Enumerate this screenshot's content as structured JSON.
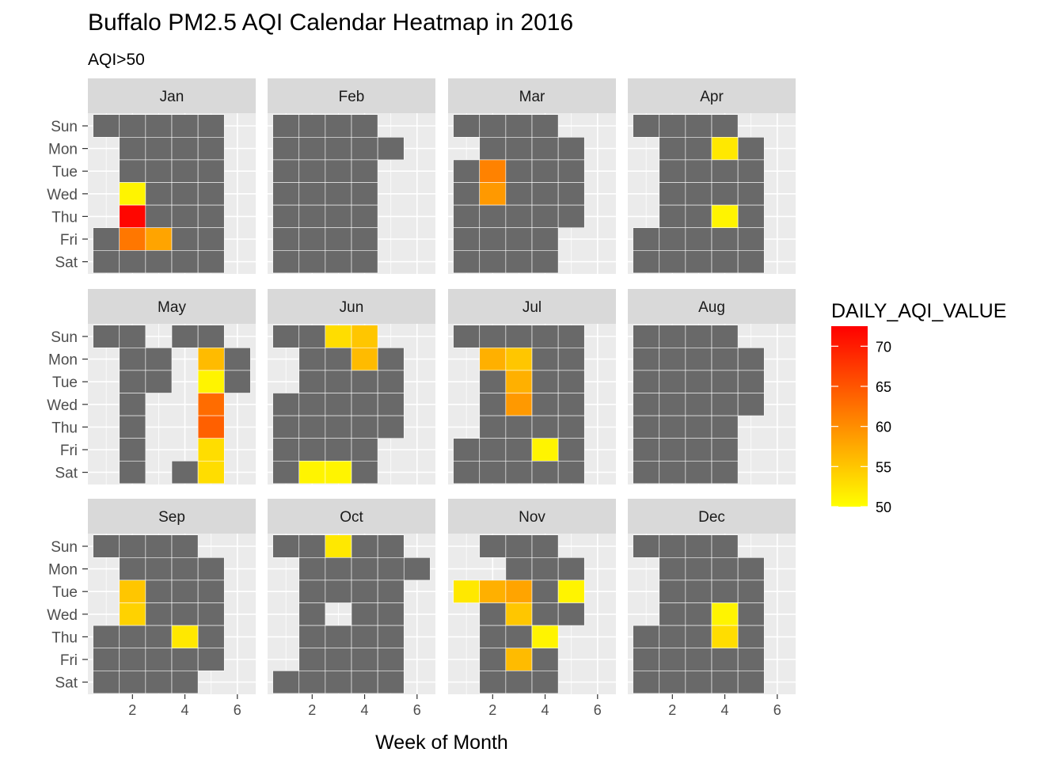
{
  "chart_data": {
    "type": "heatmap",
    "title": "Buffalo PM2.5 AQI Calendar Heatmap in 2016",
    "subtitle": "AQI>50",
    "xlabel": "Week of Month",
    "ylabel": "",
    "days": [
      "Sun",
      "Mon",
      "Tue",
      "Wed",
      "Thu",
      "Fri",
      "Sat"
    ],
    "x_ticks": [
      "2",
      "4",
      "6"
    ],
    "x_range": [
      0.3,
      6.7
    ],
    "legend": {
      "title": "DAILY_AQI_VALUE",
      "position": "right",
      "range": [
        50,
        72.5
      ],
      "ticks": [
        "50",
        "55",
        "60",
        "65",
        "70"
      ],
      "colors": [
        "#FFFF00",
        "#FF0000"
      ]
    },
    "base_color": "#696969",
    "facets": [
      {
        "month": "Jan",
        "cols": [
          [
            1,
            [
              0,
              5,
              6
            ]
          ],
          [
            2,
            [
              0,
              1,
              2,
              3,
              4,
              5,
              6
            ]
          ],
          [
            3,
            [
              0,
              1,
              2,
              3,
              4,
              5,
              6
            ]
          ],
          [
            4,
            [
              0,
              1,
              2,
              3,
              4,
              5,
              6
            ]
          ],
          [
            5,
            [
              0,
              1,
              2,
              3,
              4,
              5,
              6
            ]
          ]
        ],
        "high": [
          [
            2,
            3,
            51
          ],
          [
            2,
            4,
            72
          ],
          [
            2,
            5,
            62
          ],
          [
            3,
            5,
            58
          ]
        ]
      },
      {
        "month": "Feb",
        "cols": [
          [
            1,
            [
              0,
              1,
              2,
              3,
              4,
              5,
              6
            ]
          ],
          [
            2,
            [
              0,
              1,
              2,
              3,
              4,
              5,
              6
            ]
          ],
          [
            3,
            [
              0,
              1,
              2,
              3,
              4,
              5,
              6
            ]
          ],
          [
            4,
            [
              0,
              1,
              2,
              3,
              4,
              5,
              6
            ]
          ],
          [
            5,
            [
              1
            ]
          ]
        ],
        "high": []
      },
      {
        "month": "Mar",
        "cols": [
          [
            1,
            [
              0,
              2,
              3,
              4,
              5,
              6
            ]
          ],
          [
            2,
            [
              0,
              1,
              2,
              3,
              4,
              5,
              6
            ]
          ],
          [
            3,
            [
              0,
              1,
              2,
              3,
              4,
              5,
              6
            ]
          ],
          [
            4,
            [
              0,
              1,
              2,
              3,
              4,
              5,
              6
            ]
          ],
          [
            5,
            [
              1,
              2,
              3,
              4
            ]
          ]
        ],
        "high": [
          [
            2,
            2,
            61
          ],
          [
            2,
            3,
            59
          ]
        ]
      },
      {
        "month": "Apr",
        "cols": [
          [
            1,
            [
              0,
              5,
              6
            ]
          ],
          [
            2,
            [
              0,
              1,
              2,
              3,
              4,
              5,
              6
            ]
          ],
          [
            3,
            [
              0,
              1,
              2,
              3,
              4,
              5,
              6
            ]
          ],
          [
            4,
            [
              0,
              1,
              2,
              3,
              4,
              5,
              6
            ]
          ],
          [
            5,
            [
              1,
              2,
              3,
              4,
              5,
              6
            ]
          ]
        ],
        "high": [
          [
            4,
            1,
            52
          ],
          [
            4,
            4,
            51
          ]
        ]
      },
      {
        "month": "May",
        "cols": [
          [
            1,
            [
              0
            ]
          ],
          [
            2,
            [
              0,
              1,
              2,
              3,
              4,
              5,
              6
            ]
          ],
          [
            3,
            [
              1,
              2
            ]
          ],
          [
            4,
            [
              0,
              6
            ]
          ],
          [
            5,
            [
              0,
              1,
              2,
              3,
              4,
              5,
              6
            ]
          ],
          [
            6,
            [
              1,
              2
            ]
          ]
        ],
        "high": [
          [
            5,
            1,
            56
          ],
          [
            5,
            2,
            51
          ],
          [
            5,
            3,
            63
          ],
          [
            5,
            4,
            64
          ],
          [
            5,
            5,
            53
          ],
          [
            5,
            6,
            53
          ]
        ]
      },
      {
        "month": "Jun",
        "cols": [
          [
            1,
            [
              0,
              3,
              4,
              5,
              6
            ]
          ],
          [
            2,
            [
              0,
              1,
              2,
              3,
              4,
              5,
              6
            ]
          ],
          [
            3,
            [
              0,
              1,
              2,
              3,
              4,
              5,
              6
            ]
          ],
          [
            4,
            [
              0,
              1,
              2,
              3,
              4,
              5,
              6
            ]
          ],
          [
            5,
            [
              1,
              2,
              3,
              4
            ]
          ]
        ],
        "high": [
          [
            2,
            6,
            51
          ],
          [
            3,
            0,
            53
          ],
          [
            3,
            6,
            51
          ],
          [
            4,
            0,
            55
          ],
          [
            4,
            1,
            56
          ]
        ]
      },
      {
        "month": "Jul",
        "cols": [
          [
            1,
            [
              0,
              5,
              6
            ]
          ],
          [
            2,
            [
              0,
              1,
              2,
              3,
              4,
              5,
              6
            ]
          ],
          [
            3,
            [
              0,
              1,
              2,
              3,
              4,
              5,
              6
            ]
          ],
          [
            4,
            [
              0,
              1,
              2,
              3,
              4,
              5,
              6
            ]
          ],
          [
            5,
            [
              0,
              1,
              2,
              3,
              4,
              5,
              6
            ]
          ]
        ],
        "high": [
          [
            2,
            1,
            57
          ],
          [
            3,
            1,
            55
          ],
          [
            3,
            2,
            57
          ],
          [
            3,
            3,
            59
          ],
          [
            4,
            5,
            51
          ]
        ]
      },
      {
        "month": "Aug",
        "cols": [
          [
            1,
            [
              0,
              1,
              2,
              3,
              4,
              5,
              6
            ]
          ],
          [
            2,
            [
              0,
              1,
              2,
              3,
              4,
              5,
              6
            ]
          ],
          [
            3,
            [
              0,
              1,
              2,
              3,
              4,
              5,
              6
            ]
          ],
          [
            4,
            [
              0,
              1,
              2,
              3,
              4,
              5,
              6
            ]
          ],
          [
            5,
            [
              1,
              2,
              3
            ]
          ]
        ],
        "high": []
      },
      {
        "month": "Sep",
        "cols": [
          [
            1,
            [
              0,
              4,
              5,
              6
            ]
          ],
          [
            2,
            [
              0,
              1,
              2,
              3,
              4,
              5,
              6
            ]
          ],
          [
            3,
            [
              0,
              1,
              2,
              3,
              4,
              5,
              6
            ]
          ],
          [
            4,
            [
              0,
              1,
              2,
              3,
              4,
              5,
              6
            ]
          ],
          [
            5,
            [
              1,
              2,
              3,
              4,
              5
            ]
          ]
        ],
        "high": [
          [
            2,
            2,
            55
          ],
          [
            2,
            3,
            54
          ],
          [
            4,
            4,
            52
          ]
        ]
      },
      {
        "month": "Oct",
        "cols": [
          [
            1,
            [
              0,
              6
            ]
          ],
          [
            2,
            [
              0,
              1,
              2,
              3,
              4,
              5,
              6
            ]
          ],
          [
            3,
            [
              0,
              1,
              2,
              4,
              5,
              6
            ]
          ],
          [
            4,
            [
              0,
              1,
              2,
              3,
              4,
              5,
              6
            ]
          ],
          [
            5,
            [
              0,
              1,
              2,
              3,
              4,
              5,
              6
            ]
          ],
          [
            6,
            [
              1
            ]
          ]
        ],
        "high": [
          [
            3,
            0,
            52
          ]
        ]
      },
      {
        "month": "Nov",
        "cols": [
          [
            1,
            [
              2
            ]
          ],
          [
            2,
            [
              0,
              2,
              3,
              4,
              5,
              6
            ]
          ],
          [
            3,
            [
              0,
              1,
              2,
              3,
              4,
              5,
              6
            ]
          ],
          [
            4,
            [
              0,
              1,
              2,
              3,
              4,
              5,
              6
            ]
          ],
          [
            5,
            [
              1,
              2,
              3
            ]
          ]
        ],
        "high": [
          [
            1,
            2,
            52
          ],
          [
            2,
            2,
            57
          ],
          [
            3,
            2,
            58
          ],
          [
            3,
            3,
            55
          ],
          [
            3,
            5,
            56
          ],
          [
            4,
            4,
            51
          ],
          [
            5,
            2,
            51
          ]
        ]
      },
      {
        "month": "Dec",
        "cols": [
          [
            1,
            [
              0,
              4,
              5,
              6
            ]
          ],
          [
            2,
            [
              0,
              1,
              2,
              3,
              4,
              5,
              6
            ]
          ],
          [
            3,
            [
              0,
              1,
              2,
              3,
              4,
              5,
              6
            ]
          ],
          [
            4,
            [
              0,
              1,
              2,
              3,
              4,
              5,
              6
            ]
          ],
          [
            5,
            [
              1,
              2,
              3,
              4,
              5,
              6
            ]
          ]
        ],
        "high": [
          [
            4,
            3,
            51
          ],
          [
            4,
            4,
            53
          ]
        ]
      }
    ]
  }
}
